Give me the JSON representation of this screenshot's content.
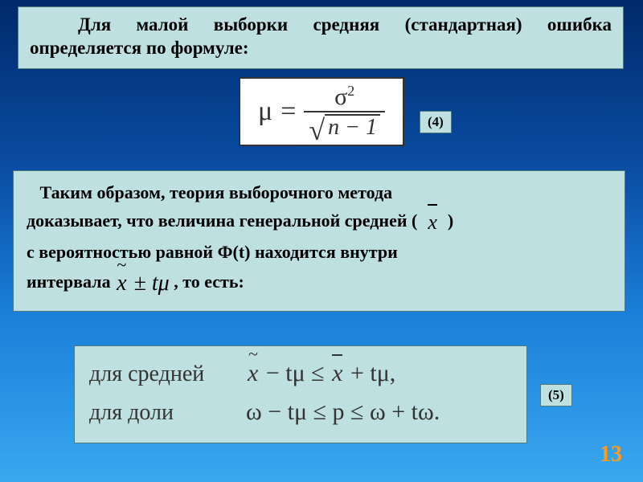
{
  "colors": {
    "bg_gradient": [
      "#002a6a",
      "#0a4da3",
      "#1a7fd9",
      "#3aa8f0"
    ],
    "box_bg": "#bfe0e0",
    "box_border": "#4a7a7a",
    "formula_bg": "#ffffff",
    "formula_border": "#333333",
    "text_color": "#000000",
    "pagenum_color": "#ff9a1f"
  },
  "typography": {
    "body_fontsize": 23,
    "box2_fontsize": 22,
    "box3_fontsize": 28,
    "label_fontsize": 17,
    "pagenum_fontsize": 28,
    "font_family": "Times New Roman"
  },
  "box1": {
    "text": "Для малой выборки средняя (стандартная) ошибка определяется по формуле:"
  },
  "formula1": {
    "lhs": "μ",
    "numerator": "σ",
    "numerator_power": "2",
    "denominator_under_sqrt": "n − 1",
    "label": "(4)"
  },
  "box2": {
    "line1": "Таким образом, теория выборочного метода",
    "line2a": "доказывает, что величина генеральной средней (",
    "line2_symbol": "x̄",
    "line2b": ")",
    "line3": " с вероятностью равной Ф(t) находится внутри",
    "line4a": "интервала ",
    "line4_expr_tilde": "x",
    "line4_expr_rest": " ± tμ",
    "line4b": " , то есть:"
  },
  "box3": {
    "row1_label": "для средней",
    "row1_math_lhs_tilde": "x",
    "row1_math_mid": " − tμ ≤ ",
    "row1_math_bar": "x",
    "row1_math_end": " + tμ,",
    "row2_label": "для доли",
    "row2_math": "ω − tμ ≤ p ≤ ω + tω.",
    "label": "(5)"
  },
  "pagenum": "13"
}
